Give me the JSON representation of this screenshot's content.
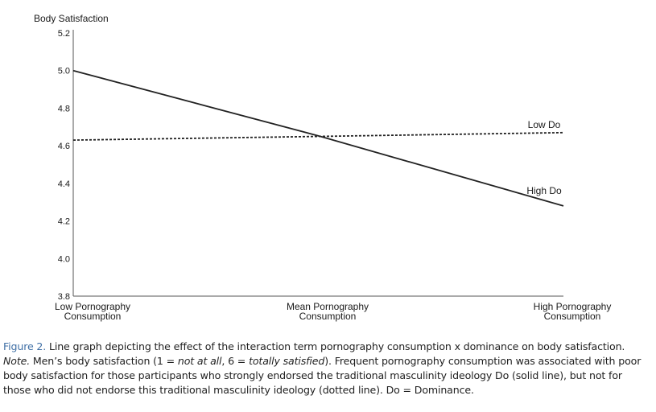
{
  "chart_data": {
    "type": "line",
    "ylabel": "Body Satisfaction",
    "xlabel": "",
    "ylim": [
      3.8,
      5.2
    ],
    "yticks": [
      "5.2",
      "5.0",
      "4.8",
      "4.6",
      "4.4",
      "4.2",
      "4.0",
      "3.8"
    ],
    "categories": [
      [
        "Low Pornography",
        "Consumption"
      ],
      [
        "Mean Pornography",
        "Consumption"
      ],
      [
        "High Pornography",
        "Consumption"
      ]
    ],
    "series": [
      {
        "name": "High Do",
        "style": "solid",
        "values": [
          5.0,
          4.65,
          4.28
        ]
      },
      {
        "name": "Low Do",
        "style": "dotted",
        "values": [
          4.63,
          4.65,
          4.67
        ]
      }
    ],
    "line_color": "#222222",
    "axis_color": "#555555"
  },
  "caption": {
    "figure_label": "Figure 2.",
    "title": " Line graph depicting the effect of the interaction term pornography consumption x dominance on body satisfaction.",
    "note_label": "Note.",
    "note_1": " Men’s body satisfaction (1 = ",
    "note_italic_1": "not at all",
    "note_2": ", 6 = ",
    "note_italic_2": "totally satisfied",
    "note_3": "). Frequent pornography consumption was associated with poor body satisfaction for those participants who strongly endorsed the traditional masculinity ideology Do (solid line), but not for those who did not endorse this traditional masculinity ideology (dotted line). Do = Dominance."
  }
}
